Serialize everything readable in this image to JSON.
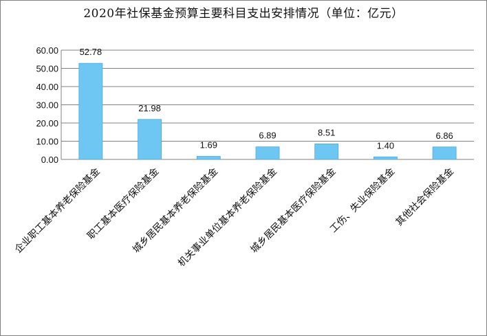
{
  "chart_data": {
    "type": "bar",
    "title": "2020年社保基金预算主要科目支出安排情况（单位：亿元）",
    "categories": [
      "企业职工基本养老保险基金",
      "职工基本医疗保险基金",
      "城乡居民基本养老保险基金",
      "机关事业单位基本养老保险基金",
      "城乡居民基本医疗保险基金",
      "工伤、失业保险基金",
      "其他社会保险基金"
    ],
    "values": [
      52.78,
      21.98,
      1.69,
      6.89,
      8.51,
      1.4,
      6.86
    ],
    "data_labels": [
      "52.78",
      "21.98",
      "1.69",
      "6.89",
      "8.51",
      "1.40",
      "6.86"
    ],
    "y_ticks": [
      "0.00",
      "10.00",
      "20.00",
      "30.00",
      "40.00",
      "50.00",
      "60.00"
    ],
    "ylim": [
      0,
      60
    ],
    "grid": true,
    "bar_color": "#6ec6f2",
    "bar_edge_color": "#4aa9de",
    "grid_color": "#808080"
  }
}
